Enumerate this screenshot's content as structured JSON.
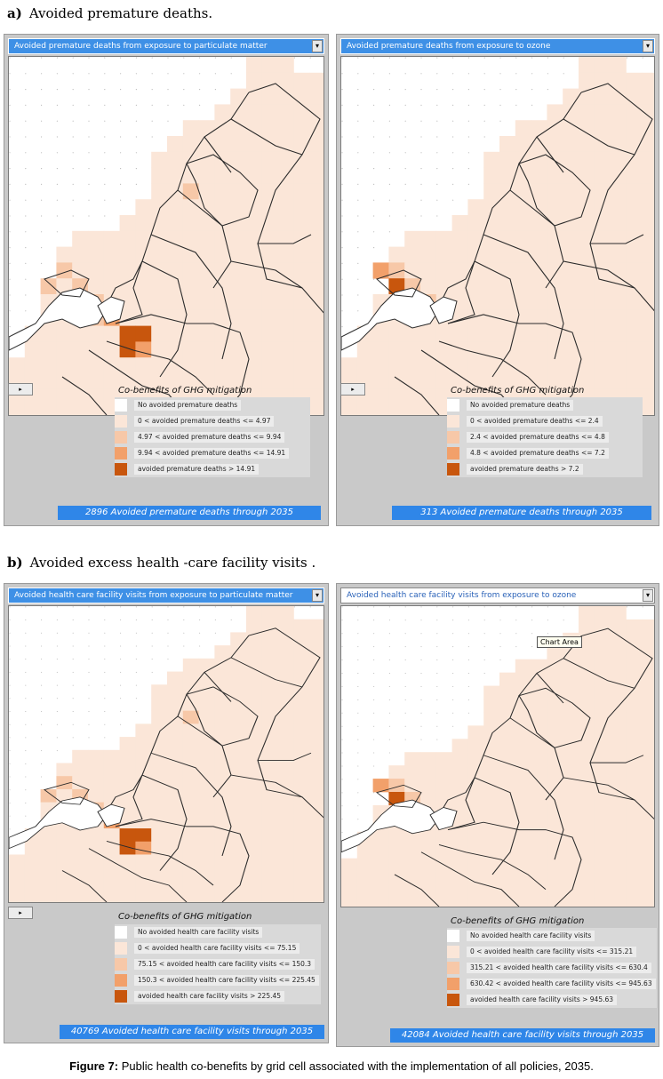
{
  "sections": [
    {
      "letter": "a)",
      "title": "Avoided premature deaths."
    },
    {
      "letter": "b)",
      "title": "Avoided excess health -care facility visits ."
    }
  ],
  "panels": [
    {
      "dropdown": "Avoided premature deaths from exposure to particulate matter",
      "legend_title": "Co-benefits of GHG mitigation",
      "legend": [
        {
          "label": "No avoided premature deaths",
          "color": "#ffffff"
        },
        {
          "label": "0 < avoided premature deaths <= 4.97",
          "color": "#fbe6d8"
        },
        {
          "label": "4.97 < avoided premature deaths <= 9.94",
          "color": "#f7c8a8"
        },
        {
          "label": "9.94 < avoided premature deaths <= 14.91",
          "color": "#f2a06a"
        },
        {
          "label": "avoided premature deaths > 14.91",
          "color": "#c8560d"
        }
      ],
      "total": "2896 Avoided premature deaths through 2035"
    },
    {
      "dropdown": "Avoided premature deaths from exposure to ozone",
      "legend_title": "Co-benefits of GHG mitigation",
      "legend": [
        {
          "label": "No avoided premature deaths",
          "color": "#ffffff"
        },
        {
          "label": "0 < avoided premature deaths <= 2.4",
          "color": "#fbe6d8"
        },
        {
          "label": "2.4 < avoided premature deaths <= 4.8",
          "color": "#f7c8a8"
        },
        {
          "label": "4.8 < avoided premature deaths <= 7.2",
          "color": "#f2a06a"
        },
        {
          "label": "avoided premature deaths > 7.2",
          "color": "#c8560d"
        }
      ],
      "total": "313 Avoided premature deaths through 2035"
    },
    {
      "dropdown": "Avoided health care facility visits from exposure to particulate matter",
      "legend_title": "Co-benefits of GHG mitigation",
      "legend": [
        {
          "label": "No avoided health care facility visits",
          "color": "#ffffff"
        },
        {
          "label": "0 < avoided health care facility visits <= 75.15",
          "color": "#fbe6d8"
        },
        {
          "label": "75.15 < avoided health care facility visits <= 150.3",
          "color": "#f7c8a8"
        },
        {
          "label": "150.3 < avoided health care facility visits <= 225.45",
          "color": "#f2a06a"
        },
        {
          "label": "avoided health care facility visits > 225.45",
          "color": "#c8560d"
        }
      ],
      "total": "40769 Avoided health care facility visits through 2035"
    },
    {
      "dropdown": "Avoided health care facility visits from exposure to ozone",
      "legend_title": "Co-benefits of GHG mitigation",
      "legend": [
        {
          "label": "No avoided health care facility visits",
          "color": "#ffffff"
        },
        {
          "label": "0 < avoided health care facility visits <= 315.21",
          "color": "#fbe6d8"
        },
        {
          "label": "315.21 < avoided health care facility visits <= 630.4",
          "color": "#f7c8a8"
        },
        {
          "label": "630.42 < avoided health care facility visits <= 945.63",
          "color": "#f2a06a"
        },
        {
          "label": "avoided health care facility visits > 945.63",
          "color": "#c8560d"
        }
      ],
      "total": "42084 Avoided health care facility visits through 2035",
      "tooltip": "Chart Area"
    }
  ],
  "scroll_button": "▸",
  "dropdown_arrow": "▾",
  "caption": {
    "label": "Figure 7:",
    "text": " Public health co-benefits by grid cell associated with the implementation of all policies, 2035."
  }
}
